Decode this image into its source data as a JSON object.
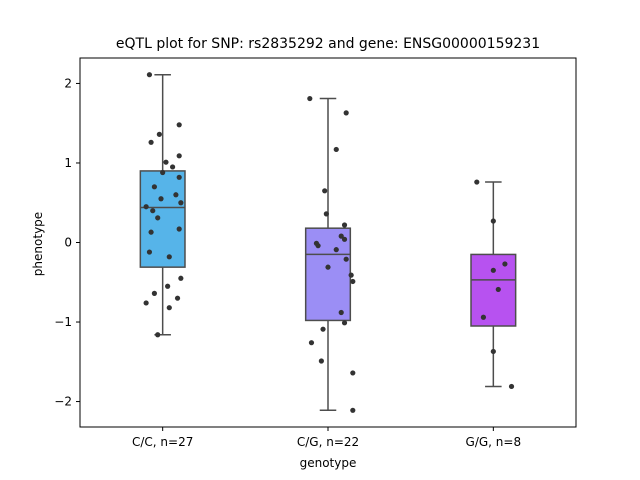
{
  "chart_data": {
    "type": "box",
    "title": "eQTL plot for SNP: rs2835292 and gene: ENSG00000159231",
    "xlabel": "genotype",
    "ylabel": "phenotype",
    "ylim": [
      -2.32,
      2.32
    ],
    "yticks": [
      -2,
      -1,
      0,
      1,
      2
    ],
    "ytick_labels": [
      "−2",
      "−1",
      "0",
      "1",
      "2"
    ],
    "grid": false,
    "groups": [
      {
        "label": "C/C, n=27",
        "color": "#56B4E9",
        "box": {
          "whisker_low": -1.16,
          "q1": -0.31,
          "median": 0.44,
          "q3": 0.9,
          "whisker_high": 2.11
        },
        "points": [
          2.11,
          1.48,
          1.36,
          1.26,
          1.09,
          1.01,
          0.95,
          0.88,
          0.82,
          0.7,
          0.6,
          0.55,
          0.5,
          0.45,
          0.4,
          0.31,
          0.17,
          0.13,
          -0.12,
          -0.18,
          -0.45,
          -0.55,
          -0.64,
          -0.7,
          -0.76,
          -0.82,
          -1.16
        ],
        "jitter": [
          -0.08,
          0.1,
          -0.02,
          -0.07,
          0.1,
          0.02,
          0.06,
          0.0,
          0.1,
          -0.05,
          0.08,
          -0.01,
          0.11,
          -0.1,
          -0.06,
          -0.03,
          0.1,
          -0.07,
          -0.08,
          0.04,
          0.11,
          0.03,
          -0.05,
          0.09,
          -0.1,
          0.04,
          -0.03
        ]
      },
      {
        "label": "C/G, n=22",
        "color": "#9B8EF5",
        "box": {
          "whisker_low": -2.11,
          "q1": -0.98,
          "median": -0.15,
          "q3": 0.18,
          "whisker_high": 1.81
        },
        "points": [
          1.81,
          1.63,
          1.17,
          0.65,
          0.36,
          0.22,
          0.08,
          0.04,
          -0.01,
          -0.04,
          -0.09,
          -0.21,
          -0.31,
          -0.41,
          -0.49,
          -0.88,
          -1.01,
          -1.09,
          -1.26,
          -1.49,
          -1.64,
          -2.11
        ],
        "jitter": [
          -0.11,
          0.11,
          0.05,
          -0.02,
          -0.01,
          0.1,
          0.08,
          0.1,
          -0.07,
          -0.06,
          0.05,
          0.11,
          0.0,
          0.14,
          0.15,
          0.08,
          0.1,
          -0.03,
          -0.1,
          -0.04,
          0.15,
          0.15
        ]
      },
      {
        "label": "G/G, n=8",
        "color": "#B752F0",
        "box": {
          "whisker_low": -1.81,
          "q1": -1.05,
          "median": -0.47,
          "q3": -0.15,
          "whisker_high": 0.76
        },
        "points": [
          0.76,
          0.27,
          -0.27,
          -0.35,
          -0.59,
          -0.94,
          -1.37,
          -1.81
        ],
        "jitter": [
          -0.1,
          0.0,
          0.07,
          -0.0,
          0.03,
          -0.06,
          0.0,
          0.11
        ]
      }
    ]
  }
}
